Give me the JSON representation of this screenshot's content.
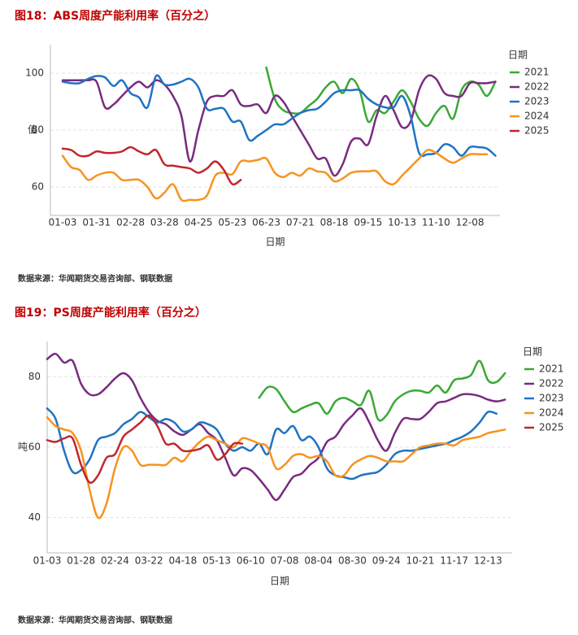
{
  "chart_data": [
    {
      "type": "line",
      "title": "图18：ABS周度产能利用率（百分之）",
      "xlabel": "日期",
      "ylabel": "值",
      "legend_title": "日期",
      "source": "数据来源：华闻期货交易咨询部、钢联数据",
      "categories": [
        "01-03",
        null,
        null,
        null,
        "01-31",
        null,
        null,
        null,
        "02-28",
        null,
        null,
        null,
        "03-28",
        null,
        null,
        null,
        "04-25",
        null,
        null,
        null,
        "05-23",
        null,
        null,
        null,
        "06-23",
        null,
        null,
        null,
        "07-21",
        null,
        null,
        null,
        "08-18",
        null,
        null,
        null,
        "09-15",
        null,
        null,
        null,
        "10-13",
        null,
        null,
        null,
        "11-10",
        null,
        null,
        null,
        "12-08",
        null,
        null,
        null
      ],
      "ylim": [
        50,
        110
      ],
      "yticks": [
        60,
        80,
        100
      ],
      "grid": true,
      "series": [
        {
          "name": "2021",
          "color": "#3aa935",
          "values": [
            null,
            null,
            null,
            null,
            null,
            null,
            null,
            null,
            null,
            null,
            null,
            null,
            null,
            null,
            null,
            null,
            null,
            null,
            null,
            null,
            null,
            null,
            null,
            null,
            102,
            91,
            87,
            86,
            86,
            88.5,
            91,
            95,
            97,
            93,
            98,
            94,
            83,
            87,
            86,
            90,
            94,
            90,
            84,
            81.5,
            86,
            88.5,
            84,
            94,
            97,
            96,
            92,
            97
          ]
        },
        {
          "name": "2022",
          "color": "#7a2a80",
          "values": [
            97.5,
            97.5,
            97.5,
            97.5,
            97,
            88,
            89,
            92,
            95,
            97,
            95,
            97.5,
            96,
            92,
            85,
            69,
            80,
            90,
            92,
            92,
            94,
            89,
            88.5,
            89,
            86,
            92,
            90,
            85,
            80,
            75,
            70,
            70,
            64,
            68,
            76,
            77,
            75,
            85,
            92,
            87,
            81,
            83,
            94,
            99,
            98,
            93,
            92,
            92,
            96.5,
            96.5,
            96.5,
            97
          ]
        },
        {
          "name": "2023",
          "color": "#1f73c4",
          "values": [
            97,
            96.5,
            96.5,
            98,
            99,
            98.5,
            95.5,
            97.5,
            93,
            91.5,
            88,
            99,
            96,
            96,
            97,
            98,
            95,
            87.5,
            87.5,
            87.5,
            83,
            83,
            76.5,
            78,
            80,
            82,
            82,
            84,
            86,
            87,
            87.5,
            90,
            93,
            94,
            94,
            94,
            91,
            89,
            88,
            88,
            92,
            85,
            72,
            71.5,
            72,
            75,
            74,
            71,
            74,
            74,
            73.5,
            71
          ]
        },
        {
          "name": "2024",
          "color": "#f7931e",
          "values": [
            71,
            67,
            66,
            62.5,
            64,
            65,
            65,
            62.5,
            62.5,
            62.5,
            60,
            56,
            58,
            61,
            55.5,
            55.5,
            55.5,
            57,
            64,
            65,
            64.5,
            69,
            69,
            69.5,
            70,
            65,
            63.5,
            65,
            64,
            66.5,
            65.5,
            65,
            62,
            63,
            65,
            65.5,
            65.5,
            65.5,
            62,
            61,
            64,
            67,
            70,
            73,
            72,
            70,
            68.5,
            70,
            71.5,
            71.5,
            71.5,
            null
          ]
        },
        {
          "name": "2025",
          "color": "#c1272d",
          "values": [
            73.5,
            73,
            71,
            71,
            72.5,
            72,
            72,
            72.5,
            74,
            72.5,
            71.5,
            73,
            68,
            67.5,
            67,
            66.5,
            65,
            66.5,
            69,
            66,
            61,
            62.5,
            null,
            null,
            null,
            null,
            null,
            null,
            null,
            null,
            null,
            null,
            null,
            null,
            null,
            null,
            null,
            null,
            null,
            null,
            null,
            null,
            null,
            null,
            null,
            null,
            null,
            null,
            null,
            null,
            null,
            null
          ]
        }
      ]
    },
    {
      "type": "line",
      "title": "图19：PS周度产能利用率（百分之）",
      "xlabel": "日期",
      "ylabel": "吨",
      "legend_title": "日期",
      "source": "数据来源：华闻期货交易咨询部、钢联数据",
      "categories": [
        "01-03",
        null,
        null,
        null,
        "01-28",
        null,
        null,
        null,
        "02-24",
        null,
        null,
        null,
        "03-22",
        null,
        null,
        null,
        "04-18",
        null,
        null,
        null,
        "05-13",
        null,
        null,
        null,
        "06-10",
        null,
        null,
        null,
        "07-08",
        null,
        null,
        null,
        "08-04",
        null,
        null,
        null,
        "08-30",
        null,
        null,
        null,
        "09-24",
        null,
        null,
        null,
        "10-21",
        null,
        null,
        null,
        "11-17",
        null,
        null,
        null,
        "12-13",
        null,
        null
      ],
      "ylim": [
        30,
        90
      ],
      "yticks": [
        40,
        60,
        80
      ],
      "grid": true,
      "series": [
        {
          "name": "2021",
          "color": "#3aa935",
          "values": [
            null,
            null,
            null,
            null,
            null,
            null,
            null,
            null,
            null,
            null,
            null,
            null,
            null,
            null,
            null,
            null,
            null,
            null,
            null,
            null,
            null,
            null,
            null,
            null,
            null,
            74,
            77,
            76.5,
            73,
            70,
            71,
            72,
            72.5,
            69.5,
            73,
            74,
            73,
            72,
            76,
            68,
            69,
            73,
            75,
            76,
            76,
            75.5,
            77.5,
            75.5,
            79,
            79.5,
            80.5,
            84.5,
            79,
            78.5,
            81
          ]
        },
        {
          "name": "2022",
          "color": "#7a2a80",
          "values": [
            85,
            86.5,
            84,
            84.5,
            78,
            75,
            75,
            77,
            79.5,
            81,
            79,
            74,
            70,
            67.5,
            66.5,
            64.5,
            63.5,
            65,
            66.5,
            64,
            62,
            57,
            52,
            54,
            53.5,
            51,
            48,
            45,
            48,
            51.5,
            52.5,
            55,
            57,
            61.5,
            63,
            66.5,
            69,
            71,
            67,
            62,
            59,
            64,
            68,
            68,
            68,
            70,
            72.5,
            73,
            74,
            75,
            75,
            74.5,
            73.5,
            73,
            73.5
          ]
        },
        {
          "name": "2023",
          "color": "#1f73c4",
          "values": [
            71,
            68,
            59,
            53,
            53.5,
            56.5,
            62,
            63,
            64,
            66.5,
            68,
            70,
            68.5,
            67,
            68,
            67,
            64.5,
            65,
            67,
            66.5,
            65,
            61,
            59,
            60,
            59,
            61,
            58,
            65,
            64,
            66,
            62,
            63,
            60,
            54,
            52,
            51.5,
            51,
            52,
            52.5,
            53,
            55,
            58,
            59,
            59,
            59.5,
            60,
            60.5,
            61,
            62,
            63,
            64.5,
            67,
            70,
            69.5,
            null
          ]
        },
        {
          "name": "2024",
          "color": "#f7931e",
          "values": [
            68.5,
            66,
            65,
            64,
            59,
            48,
            40,
            44,
            54,
            60,
            59,
            55,
            55,
            55,
            55,
            57,
            56,
            59,
            61.5,
            63,
            62,
            61,
            60,
            62.5,
            62,
            61,
            60,
            54,
            55,
            57.5,
            58,
            57,
            57.5,
            56,
            52,
            52,
            55,
            56.5,
            57.5,
            57,
            56,
            56,
            56,
            58,
            60,
            60.5,
            61,
            61,
            60.5,
            62,
            62.5,
            63,
            64,
            64.5,
            65
          ]
        },
        {
          "name": "2025",
          "color": "#c1272d",
          "values": [
            62,
            61.5,
            62.5,
            62.5,
            55,
            50,
            52,
            57,
            58,
            63,
            65,
            67,
            69,
            66,
            61,
            61,
            59,
            59,
            59.5,
            60.5,
            56.5,
            58,
            61,
            61,
            null,
            null,
            null,
            null,
            null,
            null,
            null,
            null,
            null,
            null,
            null,
            null,
            null,
            null,
            null,
            null,
            null,
            null,
            null,
            null,
            null,
            null,
            null,
            null,
            null,
            null,
            null,
            null,
            null,
            null,
            null
          ]
        }
      ]
    }
  ]
}
